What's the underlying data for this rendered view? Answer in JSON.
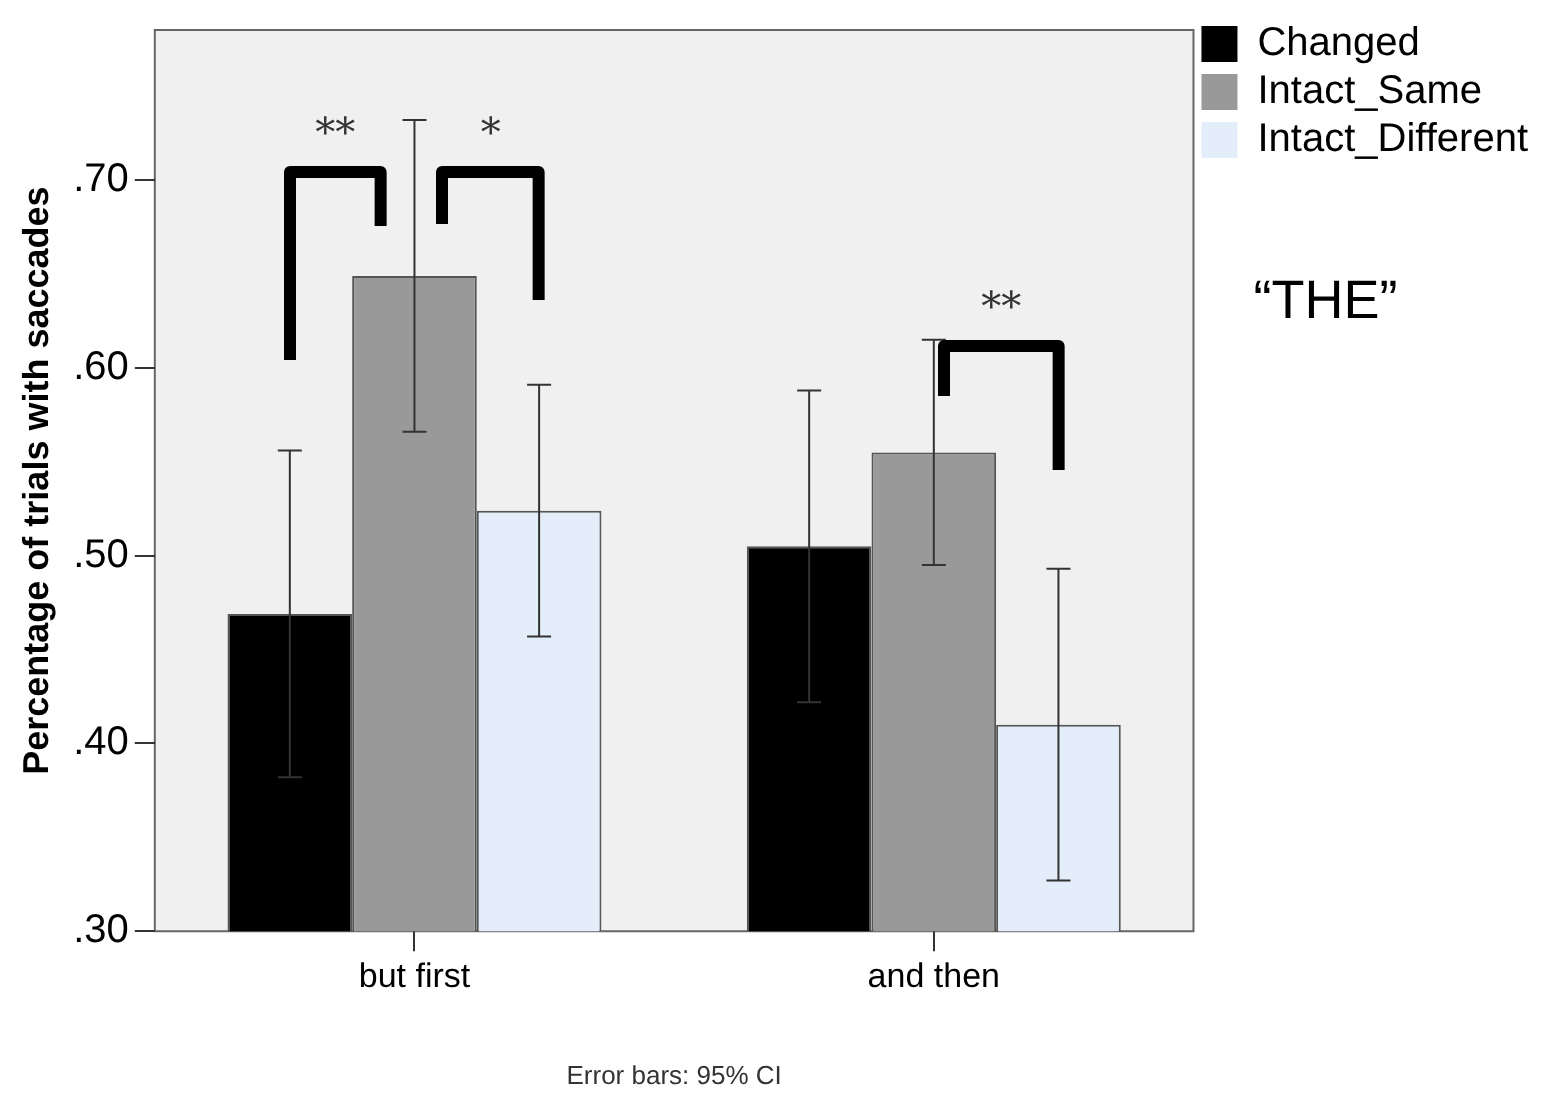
{
  "chart_data": {
    "type": "bar",
    "ylabel": "Percentage of trials with saccades",
    "categories": [
      "but first",
      "and then"
    ],
    "series": [
      {
        "name": "Changed",
        "color": "#000000",
        "values": [
          0.469,
          0.505
        ],
        "errors": [
          0.087,
          0.083
        ]
      },
      {
        "name": "Intact_Same",
        "color": "#999999",
        "values": [
          0.649,
          0.555
        ],
        "errors": [
          0.083,
          0.06
        ]
      },
      {
        "name": "Intact_Different",
        "color": "#e3eefa",
        "values": [
          0.524,
          0.41
        ],
        "errors": [
          0.067,
          0.083
        ]
      }
    ],
    "ylim": [
      0.3,
      0.78
    ],
    "yticks": [
      {
        "value": 0.3,
        "label": ".30"
      },
      {
        "value": 0.4,
        "label": ".40"
      },
      {
        "value": 0.5,
        "label": ".50"
      },
      {
        "value": 0.6,
        "label": ".60"
      },
      {
        "value": 0.7,
        "label": ".70"
      }
    ],
    "grid": false,
    "legend": "top right",
    "annotations": [
      "**",
      "*",
      "**",
      "“THE”",
      "Error bars: 95% CI"
    ]
  }
}
